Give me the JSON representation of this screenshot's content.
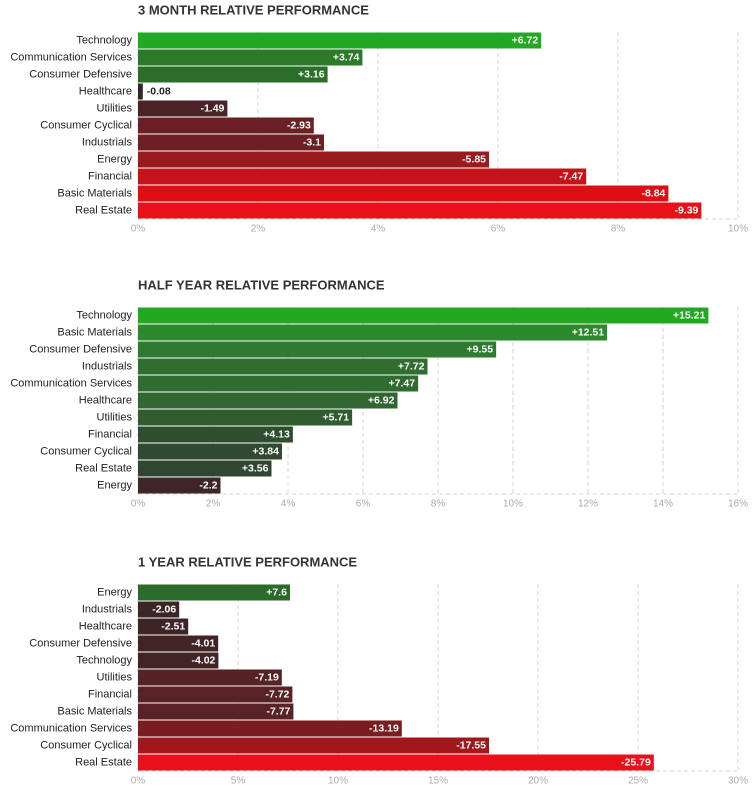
{
  "chart_data": [
    {
      "type": "bar",
      "orientation": "horizontal",
      "title": "3 MONTH RELATIVE PERFORMANCE",
      "categories": [
        "Technology",
        "Communication Services",
        "Consumer Defensive",
        "Healthcare",
        "Utilities",
        "Consumer Cyclical",
        "Industrials",
        "Energy",
        "Financial",
        "Basic Materials",
        "Real Estate"
      ],
      "values": [
        6.72,
        3.74,
        3.16,
        -0.08,
        -1.49,
        -2.93,
        -3.1,
        -5.85,
        -7.47,
        -8.84,
        -9.39
      ],
      "value_labels": [
        "+6.72",
        "+3.74",
        "+3.16",
        "-0.08",
        "-1.49",
        "-2.93",
        "-3.1",
        "-5.85",
        "-7.47",
        "-8.84",
        "-9.39"
      ],
      "colors": [
        "#22a822",
        "#2a7a2a",
        "#2a6e2a",
        "#2f2626",
        "#4a2426",
        "#6a2024",
        "#6e1f23",
        "#9a1a1e",
        "#c4141a",
        "#dc0f15",
        "#e8111a"
      ],
      "xlim": [
        0,
        10
      ],
      "xticks": [
        {
          "value": 0,
          "label": "0%"
        },
        {
          "value": 2,
          "label": "2%"
        },
        {
          "value": 4,
          "label": "4%"
        },
        {
          "value": 6,
          "label": "6%"
        },
        {
          "value": 8,
          "label": "8%"
        },
        {
          "value": 10,
          "label": "10%"
        }
      ],
      "grid": true
    },
    {
      "type": "bar",
      "orientation": "horizontal",
      "title": "HALF YEAR RELATIVE PERFORMANCE",
      "categories": [
        "Technology",
        "Basic Materials",
        "Consumer Defensive",
        "Industrials",
        "Communication Services",
        "Healthcare",
        "Utilities",
        "Financial",
        "Consumer Cyclical",
        "Real Estate",
        "Energy"
      ],
      "values": [
        15.21,
        12.51,
        9.55,
        7.72,
        7.47,
        6.92,
        5.71,
        4.13,
        3.84,
        3.56,
        -2.2
      ],
      "value_labels": [
        "+15.21",
        "+12.51",
        "+9.55",
        "+7.72",
        "+7.47",
        "+6.92",
        "+5.71",
        "+4.13",
        "+3.84",
        "+3.56",
        "-2.2"
      ],
      "colors": [
        "#22a822",
        "#2c8a2c",
        "#2e7a2e",
        "#2f6e2f",
        "#2f6c2f",
        "#30662f",
        "#305c30",
        "#2f4e30",
        "#2f4a30",
        "#2f4630",
        "#3e2628"
      ],
      "xlim": [
        0,
        16
      ],
      "xticks": [
        {
          "value": 0,
          "label": "0%"
        },
        {
          "value": 2,
          "label": "2%"
        },
        {
          "value": 4,
          "label": "4%"
        },
        {
          "value": 6,
          "label": "6%"
        },
        {
          "value": 8,
          "label": "8%"
        },
        {
          "value": 10,
          "label": "10%"
        },
        {
          "value": 12,
          "label": "12%"
        },
        {
          "value": 14,
          "label": "14%"
        },
        {
          "value": 16,
          "label": "16%"
        }
      ],
      "grid": true
    },
    {
      "type": "bar",
      "orientation": "horizontal",
      "title": "1 YEAR RELATIVE PERFORMANCE",
      "categories": [
        "Energy",
        "Industrials",
        "Healthcare",
        "Consumer Defensive",
        "Technology",
        "Utilities",
        "Financial",
        "Basic Materials",
        "Communication Services",
        "Consumer Cyclical",
        "Real Estate"
      ],
      "values": [
        7.6,
        -2.06,
        -2.51,
        -4.01,
        -4.02,
        -7.19,
        -7.72,
        -7.77,
        -13.19,
        -17.55,
        -25.79
      ],
      "value_labels": [
        "+7.6",
        "-2.06",
        "-2.51",
        "-4.01",
        "-4.02",
        "-7.19",
        "-7.72",
        "-7.77",
        "-13.19",
        "-17.55",
        "-25.79"
      ],
      "colors": [
        "#2a6a2a",
        "#3b2527",
        "#3d2527",
        "#432426",
        "#432426",
        "#552226",
        "#582226",
        "#582226",
        "#7a1d21",
        "#a0181c",
        "#e8111a"
      ],
      "xlim": [
        0,
        30
      ],
      "xticks": [
        {
          "value": 0,
          "label": "0%"
        },
        {
          "value": 5,
          "label": "5%"
        },
        {
          "value": 10,
          "label": "10%"
        },
        {
          "value": 15,
          "label": "15%"
        },
        {
          "value": 20,
          "label": "20%"
        },
        {
          "value": 25,
          "label": "25%"
        },
        {
          "value": 30,
          "label": "30%"
        }
      ],
      "grid": true
    }
  ]
}
